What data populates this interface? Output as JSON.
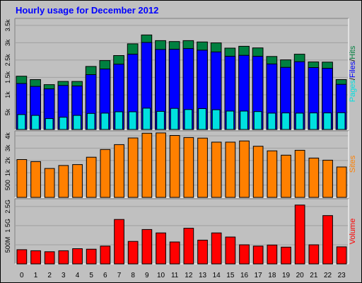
{
  "title": "Hourly usage for December 2012",
  "colors": {
    "pages": "#00e0e0",
    "files": "#0000ff",
    "hits": "#008040",
    "sites": "#ff8000",
    "volume": "#ff0000",
    "plot_bg": "#c0c0c0",
    "axis": "#808080"
  },
  "chart_data": [
    {
      "type": "bar",
      "name": "pages-files-hits",
      "categories": [
        "0",
        "1",
        "2",
        "3",
        "4",
        "5",
        "6",
        "7",
        "8",
        "9",
        "10",
        "11",
        "12",
        "13",
        "14",
        "15",
        "16",
        "17",
        "18",
        "19",
        "20",
        "21",
        "22",
        "23"
      ],
      "series": [
        {
          "name": "Hits",
          "values": [
            2350,
            2200,
            1980,
            2120,
            2120,
            2780,
            3040,
            3260,
            3780,
            4170,
            3920,
            3880,
            3920,
            3860,
            3820,
            3590,
            3670,
            3600,
            3220,
            3070,
            3320,
            2980,
            2970,
            2200
          ]
        },
        {
          "name": "Files",
          "values": [
            2030,
            1900,
            1790,
            1940,
            1920,
            2420,
            2670,
            2880,
            3320,
            3840,
            3530,
            3540,
            3570,
            3500,
            3420,
            3230,
            3270,
            3230,
            2890,
            2740,
            2990,
            2730,
            2700,
            1990
          ]
        },
        {
          "name": "Pages",
          "values": [
            660,
            620,
            480,
            540,
            620,
            710,
            720,
            780,
            780,
            940,
            800,
            930,
            880,
            920,
            870,
            810,
            810,
            790,
            720,
            730,
            720,
            730,
            730,
            740
          ]
        }
      ],
      "y_labels": [
        "5k",
        "1k",
        "1.5k",
        "2.5k",
        "3k",
        "3.5k"
      ],
      "ylim": [
        0,
        4900
      ],
      "side_label": [
        "Pages",
        "/",
        "Files",
        "/",
        "Hits"
      ]
    },
    {
      "type": "bar",
      "name": "sites",
      "categories": [
        "0",
        "1",
        "2",
        "3",
        "4",
        "5",
        "6",
        "7",
        "8",
        "9",
        "10",
        "11",
        "12",
        "13",
        "14",
        "15",
        "16",
        "17",
        "18",
        "19",
        "20",
        "21",
        "22",
        "23"
      ],
      "series": [
        {
          "name": "Sites",
          "values": [
            2560,
            2420,
            1960,
            2160,
            2220,
            2720,
            3240,
            3570,
            4020,
            4340,
            4360,
            4190,
            4050,
            4010,
            3740,
            3740,
            3820,
            3460,
            3150,
            2860,
            3190,
            2660,
            2520,
            2060
          ]
        }
      ],
      "y_labels": [
        "500",
        "1k",
        "2k",
        "3k",
        "4k"
      ],
      "ylim": [
        0,
        4500
      ],
      "side_label": [
        "Sites"
      ]
    },
    {
      "type": "bar",
      "name": "volume",
      "categories": [
        "0",
        "1",
        "2",
        "3",
        "4",
        "5",
        "6",
        "7",
        "8",
        "9",
        "10",
        "11",
        "12",
        "13",
        "14",
        "15",
        "16",
        "17",
        "18",
        "19",
        "20",
        "21",
        "22",
        "23"
      ],
      "series": [
        {
          "name": "Volume",
          "values": [
            0.55,
            0.51,
            0.47,
            0.51,
            0.59,
            0.57,
            0.69,
            1.72,
            0.87,
            1.33,
            1.2,
            0.85,
            1.38,
            0.92,
            1.2,
            1.04,
            0.74,
            0.69,
            0.73,
            0.65,
            2.28,
            0.74,
            1.87,
            0.66
          ]
        }
      ],
      "y_labels": [
        "500M",
        "1 5G",
        "2.5G"
      ],
      "ylim": [
        0,
        2.52
      ],
      "side_label": [
        "Volume"
      ]
    }
  ]
}
